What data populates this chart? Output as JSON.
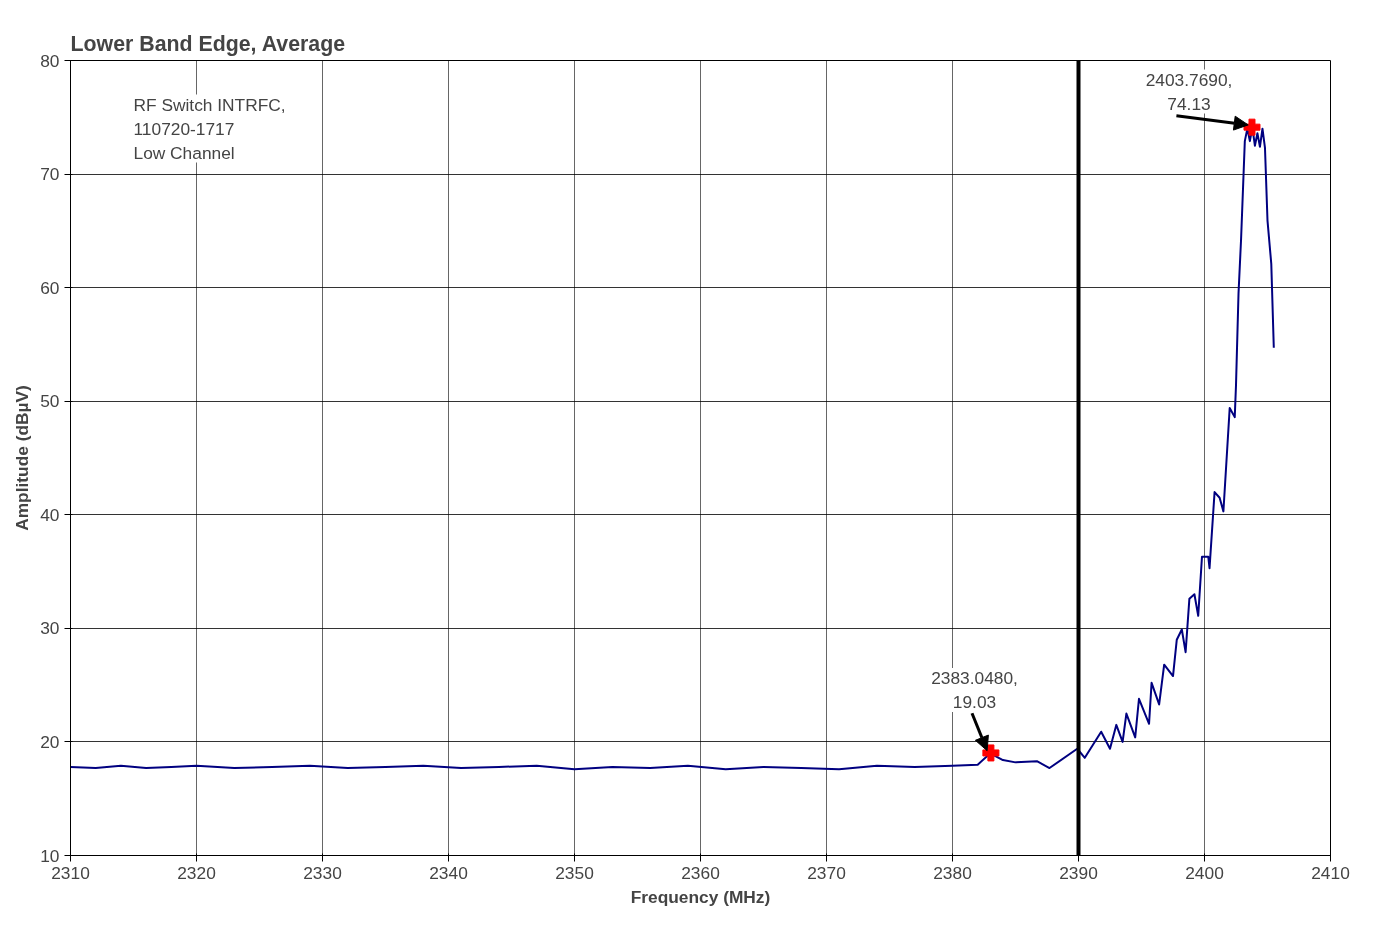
{
  "chart_data": {
    "type": "line",
    "title": "Lower Band Edge, Average",
    "xlabel": "Frequency (MHz)",
    "ylabel": "Amplitude (dBµV)",
    "xlim": [
      2310,
      2410
    ],
    "xticks": [
      2310,
      2320,
      2330,
      2340,
      2350,
      2360,
      2370,
      2380,
      2390,
      2400,
      2410
    ],
    "ylim": [
      10,
      80
    ],
    "yticks": [
      10,
      20,
      30,
      40,
      50,
      60,
      70,
      80
    ],
    "grid": true,
    "line_style": "solid",
    "series": [
      {
        "color": "#000080",
        "x": [
          2310,
          2312,
          2314,
          2316,
          2318,
          2320,
          2323,
          2326,
          2329,
          2332,
          2335,
          2338,
          2341,
          2344,
          2347,
          2350,
          2353,
          2356,
          2359,
          2362,
          2365,
          2368,
          2371,
          2374,
          2377,
          2380,
          2382,
          2383,
          2384,
          2385,
          2386.7,
          2387.7,
          2389.9,
          2390.5,
          2391.8,
          2392.5,
          2393.0,
          2393.5,
          2393.8,
          2394.5,
          2394.8,
          2395.6,
          2395.8,
          2396.4,
          2396.8,
          2397.5,
          2397.8,
          2398.2,
          2398.5,
          2398.8,
          2399.2,
          2399.5,
          2399.8,
          2400.3,
          2400.4,
          2400.8,
          2401.2,
          2401.5,
          2402.0,
          2402.4,
          2402.5,
          2402.7,
          2402.9,
          2403.2,
          2403.4,
          2403.6,
          2403.8,
          2404.0,
          2404.2,
          2404.4,
          2404.6,
          2404.8,
          2405.0,
          2405.3,
          2405.5
        ],
        "values": [
          17.8,
          17.7,
          17.9,
          17.7,
          17.8,
          17.9,
          17.7,
          17.8,
          17.9,
          17.7,
          17.8,
          17.9,
          17.7,
          17.8,
          17.9,
          17.6,
          17.8,
          17.7,
          17.9,
          17.6,
          17.8,
          17.7,
          17.6,
          17.9,
          17.8,
          17.9,
          18.0,
          19.0,
          18.4,
          18.2,
          18.3,
          17.7,
          19.4,
          18.6,
          20.9,
          19.4,
          21.5,
          20.0,
          22.5,
          20.4,
          23.8,
          21.6,
          25.2,
          23.3,
          26.8,
          25.8,
          29.0,
          29.9,
          27.9,
          32.6,
          33.0,
          31.1,
          36.3,
          36.3,
          35.3,
          42.0,
          41.5,
          40.3,
          49.4,
          48.6,
          51.4,
          59.5,
          64.2,
          72.9,
          74.0,
          72.9,
          74.1,
          72.5,
          73.6,
          72.4,
          74.0,
          72.3,
          65.9,
          62.1,
          54.7
        ]
      },
      {
        "type": "scatter",
        "marker": "cross",
        "color": "#ff0000",
        "x": [
          2383.048,
          2403.769
        ],
        "values": [
          19.03,
          74.13
        ]
      }
    ],
    "ref_lines": [
      {
        "axis": "x",
        "value": 2390,
        "color": "#000000"
      }
    ],
    "annotations": [
      {
        "text": "2403.7690,\n74.13",
        "x": 2403.769,
        "y": 74.13
      },
      {
        "text": "2383.0480,\n19.03",
        "x": 2383.048,
        "y": 19.03
      },
      "RF Switch INTRFC,\n110720-1717\nLow Channel"
    ]
  }
}
